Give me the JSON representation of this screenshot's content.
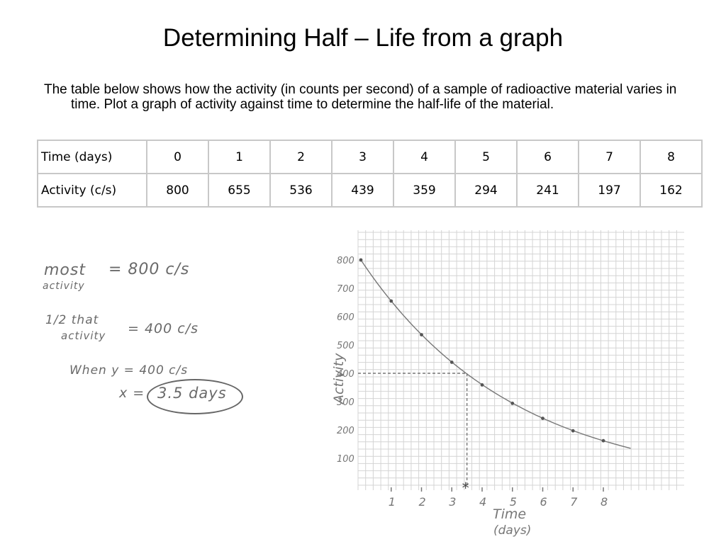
{
  "slide": {
    "title": "Determining Half – Life from a graph",
    "intro": "The table below shows how the activity (in counts per second) of a sample of radioactive material varies in time. Plot a graph of activity against time to determine the half-life of the material."
  },
  "table": {
    "row_headers": [
      "Time (days)",
      "Activity (c/s)"
    ],
    "time": [
      "0",
      "1",
      "2",
      "3",
      "4",
      "5",
      "6",
      "7",
      "8"
    ],
    "activity": [
      "800",
      "655",
      "536",
      "439",
      "359",
      "294",
      "241",
      "197",
      "162"
    ]
  },
  "notes": {
    "line1a": "most",
    "line1b": "activity",
    "line1c": "= 800 c/s",
    "line2a": "1/2 that",
    "line2b": "activity",
    "line2c": "= 400 c/s",
    "line3": "When y = 400 c/s",
    "line4a": "x =",
    "line4b": "3.5 days"
  },
  "chart_data": {
    "type": "scatter",
    "x": [
      0,
      1,
      2,
      3,
      4,
      5,
      6,
      7,
      8
    ],
    "y": [
      800,
      655,
      536,
      439,
      359,
      294,
      241,
      197,
      162
    ],
    "xlabel": "Time (days)",
    "ylabel": "Activity",
    "x_ticks": [
      "1",
      "2",
      "3",
      "4",
      "5",
      "6",
      "7",
      "8"
    ],
    "y_ticks": [
      "100",
      "200",
      "300",
      "400",
      "500",
      "600",
      "700",
      "800"
    ],
    "xlim": [
      0,
      8
    ],
    "ylim": [
      100,
      800
    ],
    "grid": true,
    "fit_curve": true,
    "annotation": {
      "y": 400,
      "x": 3.5,
      "marker": "*"
    }
  },
  "colors": {
    "grid": "#d4d4d4",
    "ink": "#777777",
    "points": "#555555"
  }
}
